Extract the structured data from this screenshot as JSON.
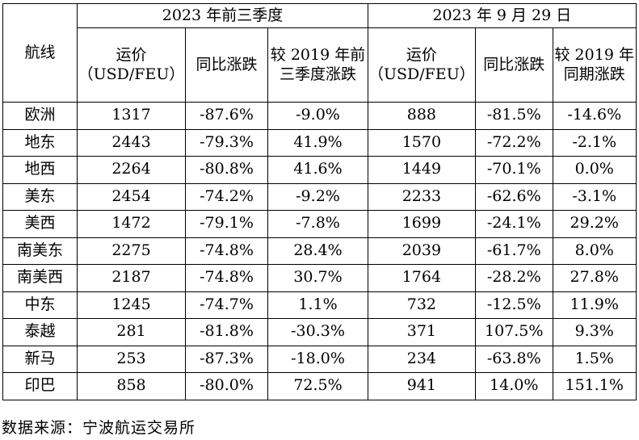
{
  "table": {
    "route_header": "航线",
    "group_headers": [
      "2023 年前三季度",
      "2023 年 9 月 29 日"
    ],
    "column_headers": [
      {
        "line1": "运价",
        "line2": "（USD/FEU）"
      },
      {
        "line1": "同比涨跌",
        "line2": ""
      },
      {
        "line1": "较 2019 年前三季度涨跌",
        "line2": ""
      },
      {
        "line1": "运价",
        "line2": "（USD/FEU）"
      },
      {
        "line1": "同比涨跌",
        "line2": ""
      },
      {
        "line1": "较 2019 年同期涨跌",
        "line2": ""
      }
    ],
    "rows": [
      {
        "route": "欧洲",
        "cells": [
          "1317",
          "-87.6%",
          "-9.0%",
          "888",
          "-81.5%",
          "-14.6%"
        ]
      },
      {
        "route": "地东",
        "cells": [
          "2443",
          "-79.3%",
          "41.9%",
          "1570",
          "-72.2%",
          "-2.1%"
        ]
      },
      {
        "route": "地西",
        "cells": [
          "2264",
          "-80.8%",
          "41.6%",
          "1449",
          "-70.1%",
          "0.0%"
        ]
      },
      {
        "route": "美东",
        "cells": [
          "2454",
          "-74.2%",
          "-9.2%",
          "2233",
          "-62.6%",
          "-3.1%"
        ]
      },
      {
        "route": "美西",
        "cells": [
          "1472",
          "-79.1%",
          "-7.8%",
          "1699",
          "-24.1%",
          "29.2%"
        ]
      },
      {
        "route": "南美东",
        "cells": [
          "2275",
          "-74.8%",
          "28.4%",
          "2039",
          "-61.7%",
          "8.0%"
        ]
      },
      {
        "route": "南美西",
        "cells": [
          "2187",
          "-74.8%",
          "30.7%",
          "1764",
          "-28.2%",
          "27.8%"
        ]
      },
      {
        "route": "中东",
        "cells": [
          "1245",
          "-74.7%",
          "1.1%",
          "732",
          "-12.5%",
          "11.9%"
        ]
      },
      {
        "route": "泰越",
        "cells": [
          "281",
          "-81.8%",
          "-30.3%",
          "371",
          "107.5%",
          "9.3%"
        ]
      },
      {
        "route": "新马",
        "cells": [
          "253",
          "-87.3%",
          "-18.0%",
          "234",
          "-63.8%",
          "1.5%"
        ]
      },
      {
        "route": "印巴",
        "cells": [
          "858",
          "-80.0%",
          "72.5%",
          "941",
          "14.0%",
          "151.1%"
        ]
      }
    ]
  },
  "source_note": "数据来源：宁波航运交易所"
}
